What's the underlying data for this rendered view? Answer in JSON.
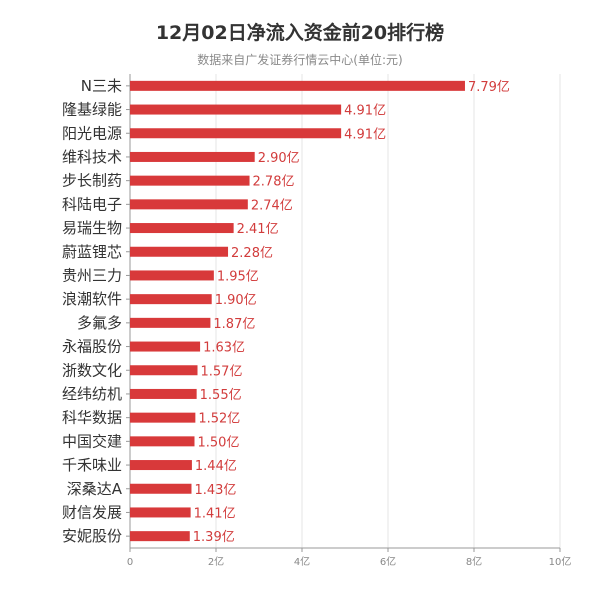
{
  "title": "12月02日净流入资金前20排行榜",
  "subtitle": "数据来自广发证券行情云中心(单位:元)",
  "colors": {
    "bar": "#d8393a",
    "value_label": "#d23c3c",
    "axis": "#999999",
    "grid": "#e6e6e6"
  },
  "chart_data": {
    "type": "bar",
    "orientation": "horizontal",
    "title": "12月02日净流入资金前20排行榜",
    "subtitle": "数据来自广发证券行情云中心(单位:元)",
    "categories": [
      "N三未",
      "隆基绿能",
      "阳光电源",
      "维科技术",
      "步长制药",
      "科陆电子",
      "易瑞生物",
      "蔚蓝锂芯",
      "贵州三力",
      "浪潮软件",
      "多氟多",
      "永福股份",
      "浙数文化",
      "经纬纺机",
      "科华数据",
      "中国交建",
      "千禾味业",
      "深桑达A",
      "财信发展",
      "安妮股份"
    ],
    "values": [
      7.79,
      4.91,
      4.91,
      2.9,
      2.78,
      2.74,
      2.41,
      2.28,
      1.95,
      1.9,
      1.87,
      1.63,
      1.57,
      1.55,
      1.52,
      1.5,
      1.44,
      1.43,
      1.41,
      1.39
    ],
    "value_labels": [
      "7.79亿",
      "4.91亿",
      "4.91亿",
      "2.90亿",
      "2.78亿",
      "2.74亿",
      "2.41亿",
      "2.28亿",
      "1.95亿",
      "1.90亿",
      "1.87亿",
      "1.63亿",
      "1.57亿",
      "1.55亿",
      "1.52亿",
      "1.50亿",
      "1.44亿",
      "1.43亿",
      "1.41亿",
      "1.39亿"
    ],
    "xlim": [
      0,
      10
    ],
    "x_ticks": [
      0,
      2,
      4,
      6,
      8,
      10
    ],
    "x_tick_labels": [
      "0",
      "2亿",
      "4亿",
      "6亿",
      "8亿",
      "10亿"
    ],
    "grid": true,
    "legend": "none"
  }
}
